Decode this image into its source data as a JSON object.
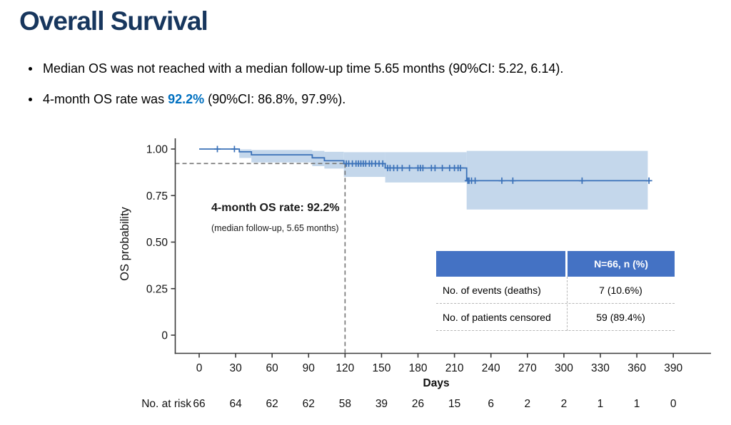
{
  "title": "Overall Survival",
  "bullets": [
    {
      "pre": "Median OS was not reached with a median follow-up time 5.65 months (90%CI: 5.22, 6.14).",
      "highlight": "",
      "post": ""
    },
    {
      "pre": "4-month OS rate was ",
      "highlight": "92.2%",
      "post": " (90%CI: 86.8%, 97.9%)."
    }
  ],
  "annotation": {
    "line1": "4-month OS rate: 92.2%",
    "line2": "(median follow-up, 5.65 months)"
  },
  "stats_table": {
    "header": "N=66, n (%)",
    "rows": [
      {
        "label": "No. of events (deaths)",
        "value": "7 (10.6%)"
      },
      {
        "label": "No. of patients censored",
        "value": "59 (89.4%)"
      }
    ]
  },
  "chart_data": {
    "type": "line",
    "subtype": "kaplan-meier-step",
    "title": "",
    "xlabel": "Days",
    "ylabel": "OS probability",
    "xlim": [
      0,
      390
    ],
    "ylim": [
      0,
      1.0
    ],
    "grid": false,
    "legend": null,
    "x_ticks": [
      0,
      30,
      60,
      90,
      120,
      150,
      180,
      210,
      240,
      270,
      300,
      330,
      360,
      390
    ],
    "y_ticks": [
      {
        "value": 1.0,
        "label": "1.00"
      },
      {
        "value": 0.75,
        "label": "0.75"
      },
      {
        "value": 0.5,
        "label": "0.50"
      },
      {
        "value": 0.25,
        "label": "0.25"
      },
      {
        "value": 0,
        "label": "0"
      }
    ],
    "series": [
      {
        "name": "Overall survival",
        "steps": [
          [
            0,
            1.0
          ],
          [
            33,
            0.985
          ],
          [
            43,
            0.969
          ],
          [
            93,
            0.953
          ],
          [
            103,
            0.937
          ],
          [
            119,
            0.922
          ],
          [
            153,
            0.898
          ],
          [
            220,
            0.83
          ],
          [
            371,
            0.83
          ]
        ]
      }
    ],
    "censor_marks": [
      [
        15,
        1.0
      ],
      [
        29,
        1.0
      ],
      [
        121,
        0.922
      ],
      [
        123,
        0.922
      ],
      [
        126,
        0.922
      ],
      [
        129,
        0.922
      ],
      [
        131,
        0.922
      ],
      [
        133,
        0.922
      ],
      [
        135,
        0.922
      ],
      [
        137,
        0.922
      ],
      [
        140,
        0.922
      ],
      [
        142,
        0.922
      ],
      [
        145,
        0.922
      ],
      [
        148,
        0.922
      ],
      [
        151,
        0.922
      ],
      [
        155,
        0.898
      ],
      [
        157,
        0.898
      ],
      [
        160,
        0.898
      ],
      [
        163,
        0.898
      ],
      [
        167,
        0.898
      ],
      [
        173,
        0.898
      ],
      [
        180,
        0.898
      ],
      [
        182,
        0.898
      ],
      [
        184,
        0.898
      ],
      [
        191,
        0.898
      ],
      [
        194,
        0.898
      ],
      [
        200,
        0.898
      ],
      [
        206,
        0.898
      ],
      [
        210,
        0.898
      ],
      [
        213,
        0.898
      ],
      [
        215,
        0.898
      ],
      [
        221,
        0.83
      ],
      [
        222,
        0.83
      ],
      [
        224,
        0.83
      ],
      [
        227,
        0.83
      ],
      [
        249,
        0.83
      ],
      [
        258,
        0.83
      ],
      [
        315,
        0.83
      ],
      [
        370,
        0.83
      ]
    ],
    "ci_band_segments": [
      [
        33,
        43,
        0.952,
        0.998
      ],
      [
        43,
        93,
        0.928,
        0.995
      ],
      [
        93,
        103,
        0.908,
        0.99
      ],
      [
        103,
        119,
        0.895,
        0.985
      ],
      [
        119,
        153,
        0.85,
        0.983
      ],
      [
        153,
        220,
        0.82,
        0.983
      ],
      [
        220,
        369,
        0.675,
        0.99
      ]
    ],
    "reference": {
      "x_day": 120,
      "y_value": 0.922
    },
    "at_risk": {
      "label": "No. at risk",
      "counts": [
        66,
        64,
        62,
        62,
        58,
        39,
        26,
        15,
        6,
        2,
        2,
        1,
        1,
        0
      ]
    }
  },
  "colors": {
    "title": "#17365D",
    "highlight": "#0070C0",
    "curve": "#3A71B8",
    "band": "#C4D7EB",
    "reference": "#737373",
    "axis": "#3b3b3b",
    "text": "#111111",
    "table_header": "#4472C4"
  }
}
